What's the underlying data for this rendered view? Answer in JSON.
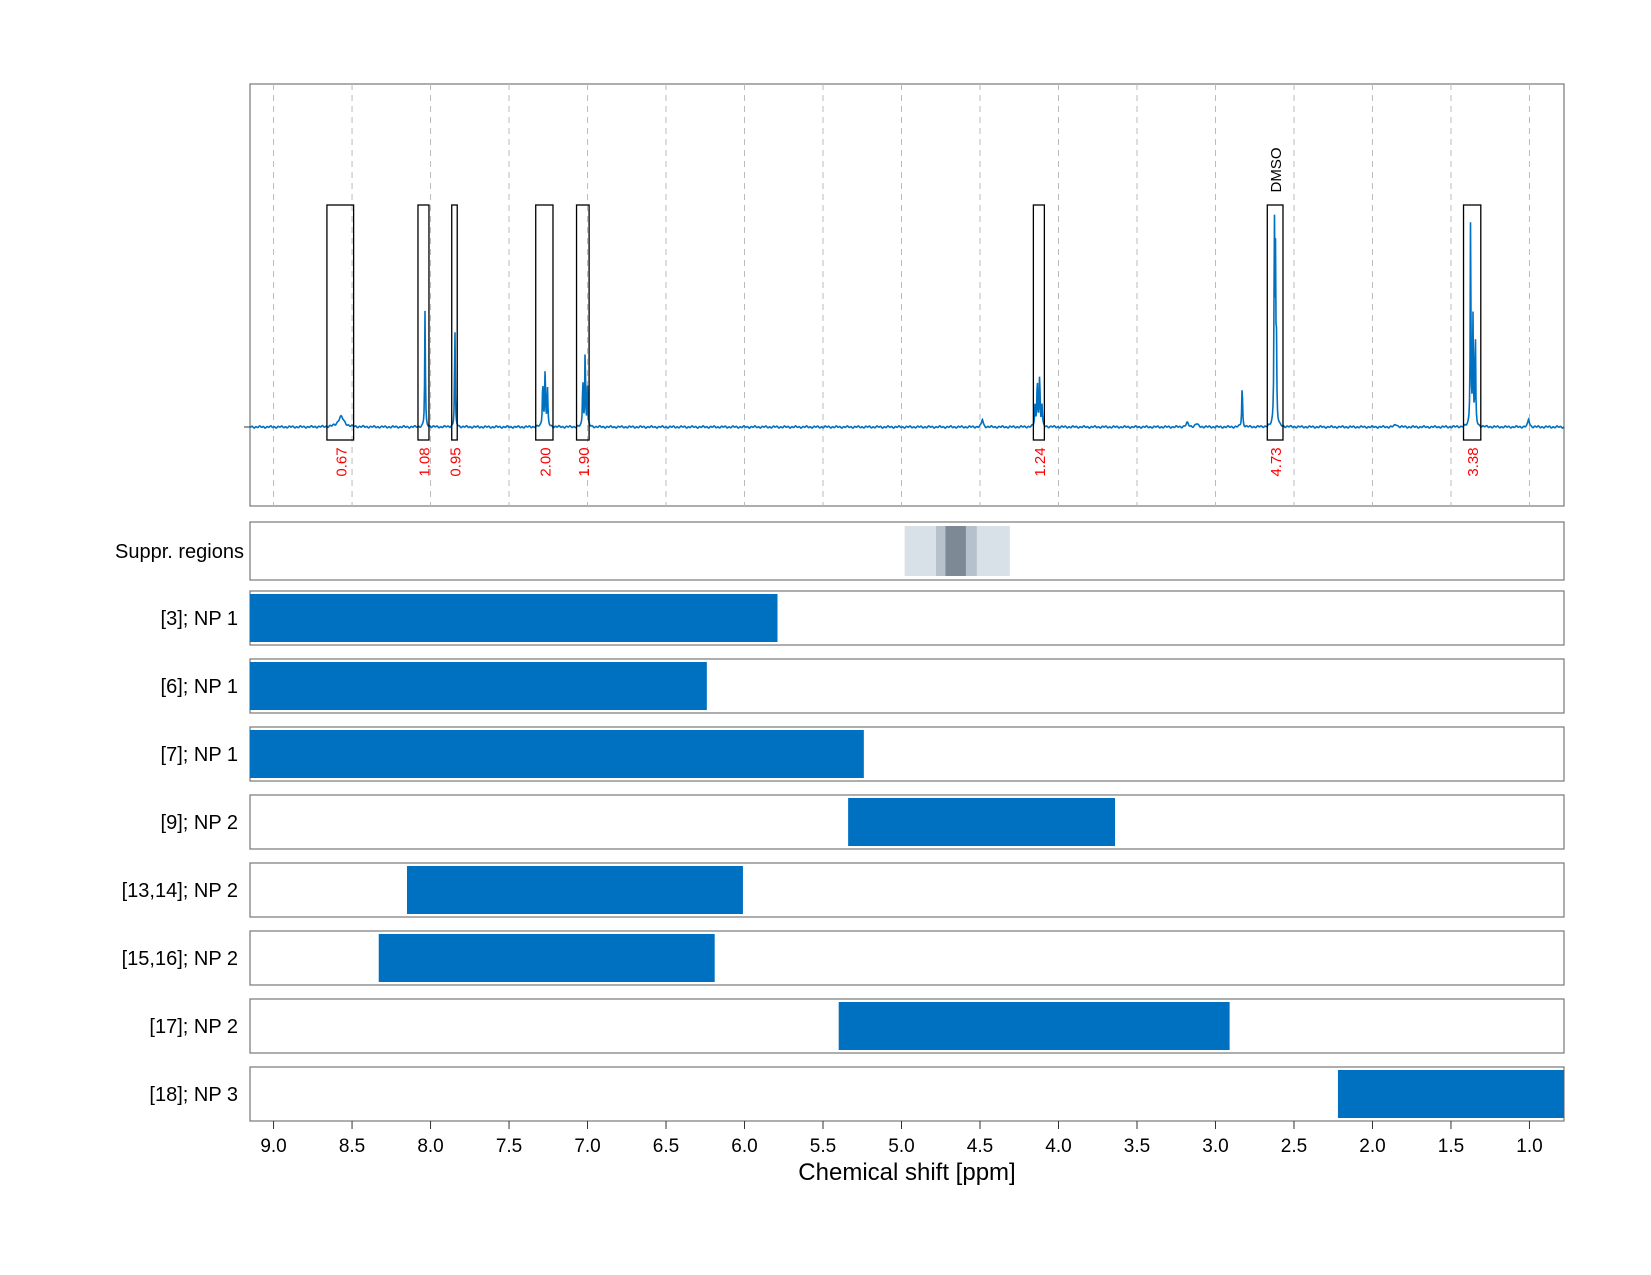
{
  "chart_data": {
    "type": "bar",
    "xlabel": "Chemical shift [ppm]",
    "x_axis": {
      "reversed": true,
      "range": [
        9.15,
        0.78
      ],
      "ticks": [
        9.0,
        8.5,
        8.0,
        7.5,
        7.0,
        6.5,
        6.0,
        5.5,
        5.0,
        4.5,
        4.0,
        3.5,
        3.0,
        2.5,
        2.0,
        1.5,
        1.0
      ],
      "tick_labels": [
        "9.0",
        "8.5",
        "8.0",
        "7.5",
        "7.0",
        "6.5",
        "6.0",
        "5.5",
        "5.0",
        "4.5",
        "4.0",
        "3.5",
        "3.0",
        "2.5",
        "2.0",
        "1.5",
        "1.0"
      ],
      "grid": true,
      "grid_style": "dashed"
    },
    "spectrum": {
      "color": "#0070C0",
      "baseline": 0,
      "peaks": [
        {
          "ppm": 8.57,
          "height": 0.04,
          "width": 0.022
        },
        {
          "ppm": 8.035,
          "height": 0.45,
          "width": 0.0025
        },
        {
          "ppm": 7.845,
          "height": 0.4,
          "width": 0.0025
        },
        {
          "ppm": 7.285,
          "height": 0.18,
          "width": 0.003
        },
        {
          "ppm": 7.27,
          "height": 0.22,
          "width": 0.003
        },
        {
          "ppm": 7.255,
          "height": 0.14,
          "width": 0.003
        },
        {
          "ppm": 7.03,
          "height": 0.2,
          "width": 0.0025
        },
        {
          "ppm": 7.015,
          "height": 0.32,
          "width": 0.0025
        },
        {
          "ppm": 7.0,
          "height": 0.15,
          "width": 0.0025
        },
        {
          "ppm": 4.485,
          "height": 0.03,
          "width": 0.006
        },
        {
          "ppm": 4.15,
          "height": 0.08,
          "width": 0.003
        },
        {
          "ppm": 4.135,
          "height": 0.19,
          "width": 0.003
        },
        {
          "ppm": 4.12,
          "height": 0.2,
          "width": 0.003
        },
        {
          "ppm": 4.105,
          "height": 0.08,
          "width": 0.003
        },
        {
          "ppm": 3.18,
          "height": 0.015,
          "width": 0.01
        },
        {
          "ppm": 3.12,
          "height": 0.012,
          "width": 0.01
        },
        {
          "ppm": 2.83,
          "height": 0.16,
          "width": 0.003
        },
        {
          "ppm": 2.625,
          "height": 0.82,
          "width": 0.0025
        },
        {
          "ppm": 2.618,
          "height": 0.6,
          "width": 0.0025
        },
        {
          "ppm": 2.612,
          "height": 0.3,
          "width": 0.0025
        },
        {
          "ppm": 1.85,
          "height": 0.01,
          "width": 0.01
        },
        {
          "ppm": 1.375,
          "height": 0.82,
          "width": 0.0025
        },
        {
          "ppm": 1.36,
          "height": 0.42,
          "width": 0.0025
        },
        {
          "ppm": 1.345,
          "height": 0.4,
          "width": 0.0025
        },
        {
          "ppm": 1.005,
          "height": 0.03,
          "width": 0.006
        }
      ]
    },
    "integration_regions": [
      {
        "x_start": 8.66,
        "x_end": 8.49,
        "label": "0.67",
        "label_color": "#ff0000"
      },
      {
        "x_start": 8.08,
        "x_end": 8.01,
        "label": "1.08",
        "label_color": "#ff0000"
      },
      {
        "x_start": 7.865,
        "x_end": 7.83,
        "label": "0.95",
        "label_color": "#ff0000"
      },
      {
        "x_start": 7.33,
        "x_end": 7.22,
        "label": "2.00",
        "label_color": "#ff0000"
      },
      {
        "x_start": 7.07,
        "x_end": 6.99,
        "label": "1.90",
        "label_color": "#ff0000"
      },
      {
        "x_start": 4.16,
        "x_end": 4.09,
        "label": "1.24",
        "label_color": "#ff0000"
      },
      {
        "x_start": 2.67,
        "x_end": 2.57,
        "label": "4.73",
        "label_color": "#ff0000",
        "annotation": "DMSO"
      },
      {
        "x_start": 1.42,
        "x_end": 1.31,
        "label": "3.38",
        "label_color": "#ff0000"
      }
    ],
    "suppressed_regions": {
      "label": "Suppr. regions",
      "bands": [
        {
          "x_start": 4.98,
          "x_end": 4.31,
          "color": "#d9e1e8"
        },
        {
          "x_start": 4.78,
          "x_end": 4.52,
          "color": "#b6c1cb"
        },
        {
          "x_start": 4.72,
          "x_end": 4.59,
          "color": "#7d8a96"
        }
      ]
    },
    "series": [
      {
        "name": "[3]; NP 1",
        "x_start": 9.15,
        "x_end": 5.79
      },
      {
        "name": "[6]; NP 1",
        "x_start": 9.15,
        "x_end": 6.24
      },
      {
        "name": "[7]; NP 1",
        "x_start": 9.15,
        "x_end": 5.24
      },
      {
        "name": "[9]; NP 2",
        "x_start": 5.34,
        "x_end": 3.64
      },
      {
        "name": "[13,14]; NP 2",
        "x_start": 8.15,
        "x_end": 6.01
      },
      {
        "name": "[15,16]; NP 2",
        "x_start": 8.33,
        "x_end": 6.19
      },
      {
        "name": "[17]; NP 2",
        "x_start": 5.4,
        "x_end": 2.91
      },
      {
        "name": "[18]; NP 3",
        "x_start": 2.22,
        "x_end": 0.78
      }
    ],
    "bar_color": "#0070C0"
  }
}
